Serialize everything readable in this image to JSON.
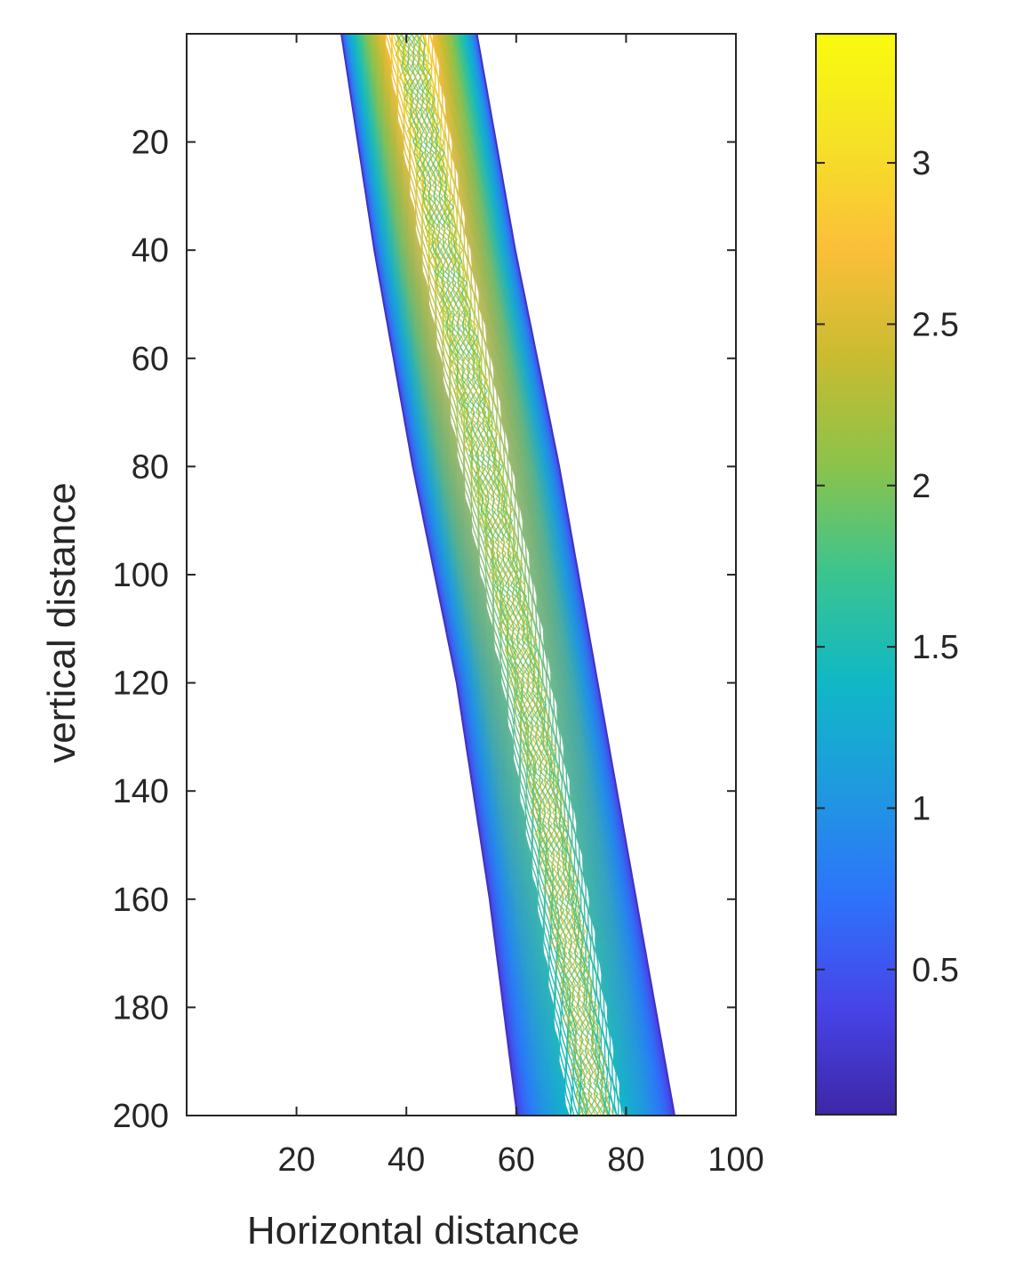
{
  "chart_data": {
    "type": "contour",
    "xlabel": "Horizontal distance",
    "ylabel": "vertical distance",
    "xlim": [
      0,
      100
    ],
    "ylim": [
      0,
      200
    ],
    "y_direction": "reversed",
    "grid": false,
    "xticks": [
      20,
      40,
      60,
      80,
      100
    ],
    "yticks": [
      20,
      40,
      60,
      80,
      100,
      120,
      140,
      160,
      180,
      200
    ],
    "colormap": "parula",
    "colormap_stops": [
      "#3e26a8",
      "#4744e8",
      "#2d73fb",
      "#1f99e0",
      "#10b8c6",
      "#3bc48f",
      "#8bc34a",
      "#c9bb31",
      "#fbbf39",
      "#f5e126",
      "#f9fb0e"
    ],
    "clim": [
      0.05,
      3.4
    ],
    "colorbar": {
      "location": "right",
      "ticks": [
        0.5,
        1,
        1.5,
        2,
        2.5,
        3
      ],
      "tick_labels": [
        "0.5",
        "1",
        "1.5",
        "2",
        "2.5",
        "3"
      ]
    },
    "band": {
      "description_values": "diagonal band of contour levels; left and right edges at given vertical distances",
      "left_edge": [
        [
          0,
          28
        ],
        [
          40,
          34
        ],
        [
          80,
          41
        ],
        [
          120,
          49
        ],
        [
          160,
          55
        ],
        [
          200,
          60
        ]
      ],
      "right_edge": [
        [
          0,
          53
        ],
        [
          40,
          60
        ],
        [
          80,
          68
        ],
        [
          120,
          75
        ],
        [
          160,
          82
        ],
        [
          200,
          89
        ]
      ],
      "peak_value_top": 3.2,
      "peak_value_bottom": 1.6,
      "edge_value": 0.2
    }
  }
}
